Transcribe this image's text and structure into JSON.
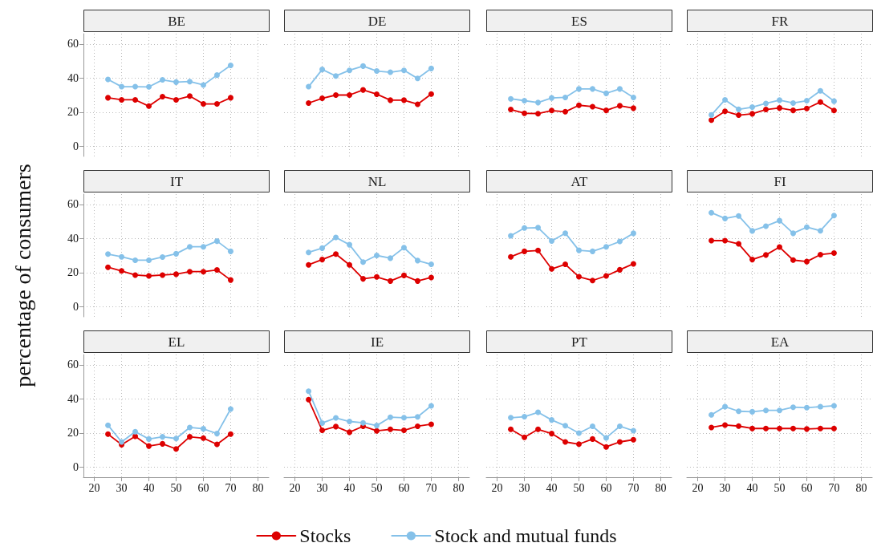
{
  "chart_data": [
    {
      "type": "line",
      "title": "BE",
      "ylabel": "percentage of consumers",
      "legend": "bottom",
      "grid": true,
      "marker": "circle",
      "tick_labels": "y",
      "x": [
        25,
        30,
        35,
        40,
        45,
        50,
        55,
        60,
        65,
        70
      ],
      "xlim": [
        16,
        84
      ],
      "xticks": [
        20,
        30,
        40,
        50,
        60,
        70,
        80
      ],
      "ylim": [
        -6,
        66
      ],
      "yticks": [
        0,
        20,
        40,
        60
      ],
      "series": [
        {
          "name": "Stocks",
          "color": "#dd0000",
          "values": [
            28.4,
            27.2,
            27.2,
            23.5,
            29.1,
            27.2,
            29.4,
            24.8,
            24.8,
            28.4
          ]
        },
        {
          "name": "Stock and mutual funds",
          "color": "#85c1e9",
          "values": [
            39.2,
            34.9,
            34.9,
            34.8,
            38.9,
            37.6,
            37.9,
            35.9,
            41.7,
            47.4
          ]
        }
      ]
    },
    {
      "type": "line",
      "title": "DE",
      "grid": true,
      "marker": "circle",
      "tick_labels": false,
      "x": [
        25,
        30,
        35,
        40,
        45,
        50,
        55,
        60,
        65,
        70
      ],
      "xlim": [
        16,
        84
      ],
      "xticks": [
        20,
        30,
        40,
        50,
        60,
        70,
        80
      ],
      "ylim": [
        -6,
        66
      ],
      "yticks": [
        0,
        20,
        40,
        60
      ],
      "series": [
        {
          "color": "#dd0000",
          "values": [
            25.3,
            28.1,
            30,
            30,
            33,
            30.5,
            27,
            27,
            24.6,
            30.6
          ]
        },
        {
          "color": "#85c1e9",
          "values": [
            34.9,
            45,
            41.2,
            44.5,
            47,
            44.1,
            43.4,
            44.5,
            39.8,
            45.6
          ]
        }
      ]
    },
    {
      "type": "line",
      "title": "ES",
      "grid": true,
      "marker": "circle",
      "tick_labels": false,
      "x": [
        25,
        30,
        35,
        40,
        45,
        50,
        55,
        60,
        65,
        70
      ],
      "xlim": [
        16,
        84
      ],
      "xticks": [
        20,
        30,
        40,
        50,
        60,
        70,
        80
      ],
      "ylim": [
        -6,
        66
      ],
      "yticks": [
        0,
        20,
        40,
        60
      ],
      "series": [
        {
          "color": "#dd0000",
          "values": [
            21.5,
            19.3,
            19.1,
            20.9,
            20.2,
            24,
            23.2,
            21,
            23.7,
            22.3
          ]
        },
        {
          "color": "#85c1e9",
          "values": [
            27.8,
            26.7,
            25.6,
            28.3,
            28.6,
            33.6,
            33.6,
            31,
            33.6,
            28.6
          ]
        }
      ]
    },
    {
      "type": "line",
      "title": "FR",
      "grid": true,
      "marker": "circle",
      "tick_labels": false,
      "x": [
        25,
        30,
        35,
        40,
        45,
        50,
        55,
        60,
        65,
        70
      ],
      "xlim": [
        16,
        84
      ],
      "xticks": [
        20,
        30,
        40,
        50,
        60,
        70,
        80
      ],
      "ylim": [
        -6,
        66
      ],
      "yticks": [
        0,
        20,
        40,
        60
      ],
      "series": [
        {
          "color": "#dd0000",
          "values": [
            15.3,
            20.5,
            18.2,
            19,
            21.5,
            22.4,
            21,
            22.1,
            25.9,
            20.9
          ]
        },
        {
          "color": "#85c1e9",
          "values": [
            18.3,
            27.2,
            21.6,
            22.9,
            25.1,
            27,
            25.3,
            26.7,
            32.5,
            26.4
          ]
        }
      ]
    },
    {
      "type": "line",
      "title": "IT",
      "grid": true,
      "marker": "circle",
      "tick_labels": "y",
      "x": [
        25,
        30,
        35,
        40,
        45,
        50,
        55,
        60,
        65,
        70
      ],
      "xlim": [
        16,
        84
      ],
      "xticks": [
        20,
        30,
        40,
        50,
        60,
        70,
        80
      ],
      "ylim": [
        -6,
        66
      ],
      "yticks": [
        0,
        20,
        40,
        60
      ],
      "series": [
        {
          "color": "#dd0000",
          "values": [
            23.1,
            20.9,
            18.5,
            18,
            18.5,
            19,
            20.5,
            20.5,
            21.5,
            15.6
          ]
        },
        {
          "color": "#85c1e9",
          "values": [
            30.8,
            29.2,
            27.2,
            27.2,
            29.1,
            31,
            35.1,
            35.1,
            38.4,
            32.4
          ]
        }
      ]
    },
    {
      "type": "line",
      "title": "NL",
      "grid": true,
      "marker": "circle",
      "tick_labels": false,
      "x": [
        25,
        30,
        35,
        40,
        45,
        50,
        55,
        60,
        65,
        70
      ],
      "xlim": [
        16,
        84
      ],
      "xticks": [
        20,
        30,
        40,
        50,
        60,
        70,
        80
      ],
      "ylim": [
        -6,
        66
      ],
      "yticks": [
        0,
        20,
        40,
        60
      ],
      "series": [
        {
          "color": "#dd0000",
          "values": [
            24.5,
            27.6,
            30.8,
            24.5,
            16.3,
            17.4,
            15,
            18.3,
            15,
            17.1
          ]
        },
        {
          "color": "#85c1e9",
          "values": [
            31.8,
            34.3,
            40.6,
            36.3,
            26.1,
            30,
            28.4,
            34.6,
            27,
            24.8
          ]
        }
      ]
    },
    {
      "type": "line",
      "title": "AT",
      "grid": true,
      "marker": "circle",
      "tick_labels": false,
      "x": [
        25,
        30,
        35,
        40,
        45,
        50,
        55,
        60,
        65,
        70
      ],
      "xlim": [
        16,
        84
      ],
      "xticks": [
        20,
        30,
        40,
        50,
        60,
        70,
        80
      ],
      "ylim": [
        -6,
        66
      ],
      "yticks": [
        0,
        20,
        40,
        60
      ],
      "series": [
        {
          "color": "#dd0000",
          "values": [
            29.2,
            32.4,
            32.9,
            22.1,
            24.8,
            17.5,
            15.3,
            18,
            21.6,
            25.1
          ]
        },
        {
          "color": "#85c1e9",
          "values": [
            41.5,
            46.1,
            46.3,
            38.5,
            43.1,
            33,
            32.4,
            35.1,
            38.2,
            43
          ]
        }
      ]
    },
    {
      "type": "line",
      "title": "FI",
      "grid": true,
      "marker": "circle",
      "tick_labels": false,
      "x": [
        25,
        30,
        35,
        40,
        45,
        50,
        55,
        60,
        65,
        70
      ],
      "xlim": [
        16,
        84
      ],
      "xticks": [
        20,
        30,
        40,
        50,
        60,
        70,
        80
      ],
      "ylim": [
        -6,
        66
      ],
      "yticks": [
        0,
        20,
        40,
        60
      ],
      "series": [
        {
          "color": "#dd0000",
          "values": [
            38.7,
            38.7,
            36.8,
            27.6,
            30.3,
            34.9,
            27.3,
            26.4,
            30.5,
            31.4
          ]
        },
        {
          "color": "#85c1e9",
          "values": [
            55.1,
            51.7,
            53.2,
            44.4,
            47.2,
            50.4,
            43,
            46.6,
            44.5,
            53.4
          ]
        }
      ]
    },
    {
      "type": "line",
      "title": "EL",
      "grid": true,
      "marker": "circle",
      "x": [
        25,
        30,
        35,
        40,
        45,
        50,
        55,
        60,
        65,
        70
      ],
      "xlim": [
        16,
        84
      ],
      "xticks": [
        20,
        30,
        40,
        50,
        60,
        70,
        80
      ],
      "ylim": [
        -6,
        66
      ],
      "yticks": [
        0,
        20,
        40,
        60
      ],
      "series": [
        {
          "color": "#dd0000",
          "values": [
            19.3,
            13.1,
            18,
            12.3,
            13.6,
            10.6,
            17.7,
            16.9,
            13.3,
            19.3
          ]
        },
        {
          "color": "#85c1e9",
          "values": [
            24.5,
            14.7,
            20.7,
            16.4,
            17.7,
            16.7,
            23.2,
            22.4,
            19.6,
            34
          ]
        }
      ]
    },
    {
      "type": "line",
      "title": "IE",
      "grid": true,
      "marker": "circle",
      "tick_labels": "x",
      "x": [
        25,
        30,
        35,
        40,
        45,
        50,
        55,
        60,
        65,
        70
      ],
      "xlim": [
        16,
        84
      ],
      "xticks": [
        20,
        30,
        40,
        50,
        60,
        70,
        80
      ],
      "ylim": [
        -6,
        66
      ],
      "yticks": [
        0,
        20,
        40,
        60
      ],
      "series": [
        {
          "color": "#dd0000",
          "values": [
            39.5,
            21.5,
            23.7,
            20.4,
            23.9,
            21.2,
            22.1,
            21.5,
            23.9,
            25.1
          ]
        },
        {
          "color": "#85c1e9",
          "values": [
            44.5,
            25.8,
            28.8,
            26.7,
            25.9,
            24.3,
            29.2,
            28.9,
            29.4,
            35.9
          ]
        }
      ]
    },
    {
      "type": "line",
      "title": "PT",
      "grid": true,
      "marker": "circle",
      "tick_labels": "x",
      "x": [
        25,
        30,
        35,
        40,
        45,
        50,
        55,
        60,
        65,
        70
      ],
      "xlim": [
        16,
        84
      ],
      "xticks": [
        20,
        30,
        40,
        50,
        60,
        70,
        80
      ],
      "ylim": [
        -6,
        66
      ],
      "yticks": [
        0,
        20,
        40,
        60
      ],
      "series": [
        {
          "color": "#dd0000",
          "values": [
            22.1,
            17.4,
            22.1,
            19.6,
            14.7,
            13.4,
            16.4,
            11.8,
            14.7,
            16
          ]
        },
        {
          "color": "#85c1e9",
          "values": [
            28.9,
            29.5,
            32.1,
            27.6,
            24.2,
            19.9,
            23.9,
            17.1,
            23.9,
            21.3
          ]
        }
      ]
    },
    {
      "type": "line",
      "title": "EA",
      "grid": true,
      "marker": "circle",
      "tick_labels": "x",
      "x": [
        25,
        30,
        35,
        40,
        45,
        50,
        55,
        60,
        65,
        70
      ],
      "xlim": [
        16,
        84
      ],
      "xticks": [
        20,
        30,
        40,
        50,
        60,
        70,
        80
      ],
      "ylim": [
        -6,
        66
      ],
      "yticks": [
        0,
        20,
        40,
        60
      ],
      "series": [
        {
          "color": "#dd0000",
          "values": [
            23.2,
            24.6,
            24,
            22.6,
            22.6,
            22.6,
            22.6,
            22.3,
            22.6,
            22.6
          ]
        },
        {
          "color": "#85c1e9",
          "values": [
            30.6,
            35.4,
            32.7,
            32.4,
            33.2,
            33.2,
            35.1,
            34.8,
            35.4,
            35.9
          ]
        }
      ]
    }
  ]
}
